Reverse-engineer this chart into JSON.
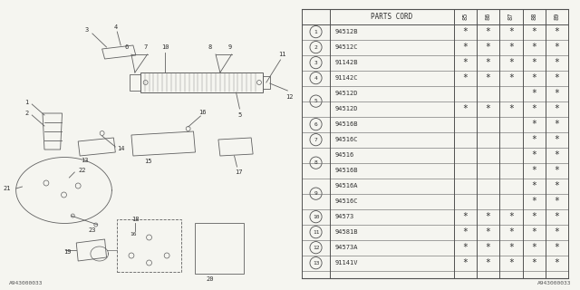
{
  "title": "1986 Subaru GL Series Trunk Room Trim Diagram 1",
  "diagram_number": "A943000033",
  "bg_color": "#f5f5f0",
  "table_bg": "#ffffff",
  "line_color": "#606060",
  "text_color": "#303030",
  "table": {
    "header_cols": [
      "PARTS CORD",
      "85",
      "86",
      "87",
      "88",
      "89"
    ],
    "rows": [
      {
        "num": "1",
        "sub": null,
        "code": "94512B",
        "marks": [
          true,
          true,
          true,
          true,
          true
        ]
      },
      {
        "num": "2",
        "sub": null,
        "code": "94512C",
        "marks": [
          true,
          true,
          true,
          true,
          true
        ]
      },
      {
        "num": "3",
        "sub": null,
        "code": "91142B",
        "marks": [
          true,
          true,
          true,
          true,
          true
        ]
      },
      {
        "num": "4",
        "sub": null,
        "code": "91142C",
        "marks": [
          true,
          true,
          true,
          true,
          true
        ]
      },
      {
        "num": "5",
        "sub": "a",
        "code": "94512D",
        "marks": [
          false,
          false,
          false,
          true,
          true
        ]
      },
      {
        "num": "5",
        "sub": "b",
        "code": "94512D",
        "marks": [
          true,
          true,
          true,
          true,
          true
        ]
      },
      {
        "num": "6",
        "sub": null,
        "code": "94516B",
        "marks": [
          false,
          false,
          false,
          true,
          true
        ]
      },
      {
        "num": "7",
        "sub": null,
        "code": "94516C",
        "marks": [
          false,
          false,
          false,
          true,
          true
        ]
      },
      {
        "num": "8",
        "sub": "a",
        "code": "94516",
        "marks": [
          false,
          false,
          false,
          true,
          true
        ]
      },
      {
        "num": "8",
        "sub": "b",
        "code": "94516B",
        "marks": [
          false,
          false,
          false,
          true,
          true
        ]
      },
      {
        "num": "9",
        "sub": "a",
        "code": "94516A",
        "marks": [
          false,
          false,
          false,
          true,
          true
        ]
      },
      {
        "num": "9",
        "sub": "b",
        "code": "94516C",
        "marks": [
          false,
          false,
          false,
          true,
          true
        ]
      },
      {
        "num": "10",
        "sub": null,
        "code": "94573",
        "marks": [
          true,
          true,
          true,
          true,
          true
        ]
      },
      {
        "num": "11",
        "sub": null,
        "code": "94581B",
        "marks": [
          true,
          true,
          true,
          true,
          true
        ]
      },
      {
        "num": "12",
        "sub": null,
        "code": "94573A",
        "marks": [
          true,
          true,
          true,
          true,
          true
        ]
      },
      {
        "num": "13",
        "sub": null,
        "code": "91141V",
        "marks": [
          true,
          true,
          true,
          true,
          true
        ]
      }
    ],
    "grouped_nums": {
      "5": [
        4,
        5
      ],
      "8": [
        8,
        9
      ],
      "9": [
        10,
        11
      ]
    }
  }
}
